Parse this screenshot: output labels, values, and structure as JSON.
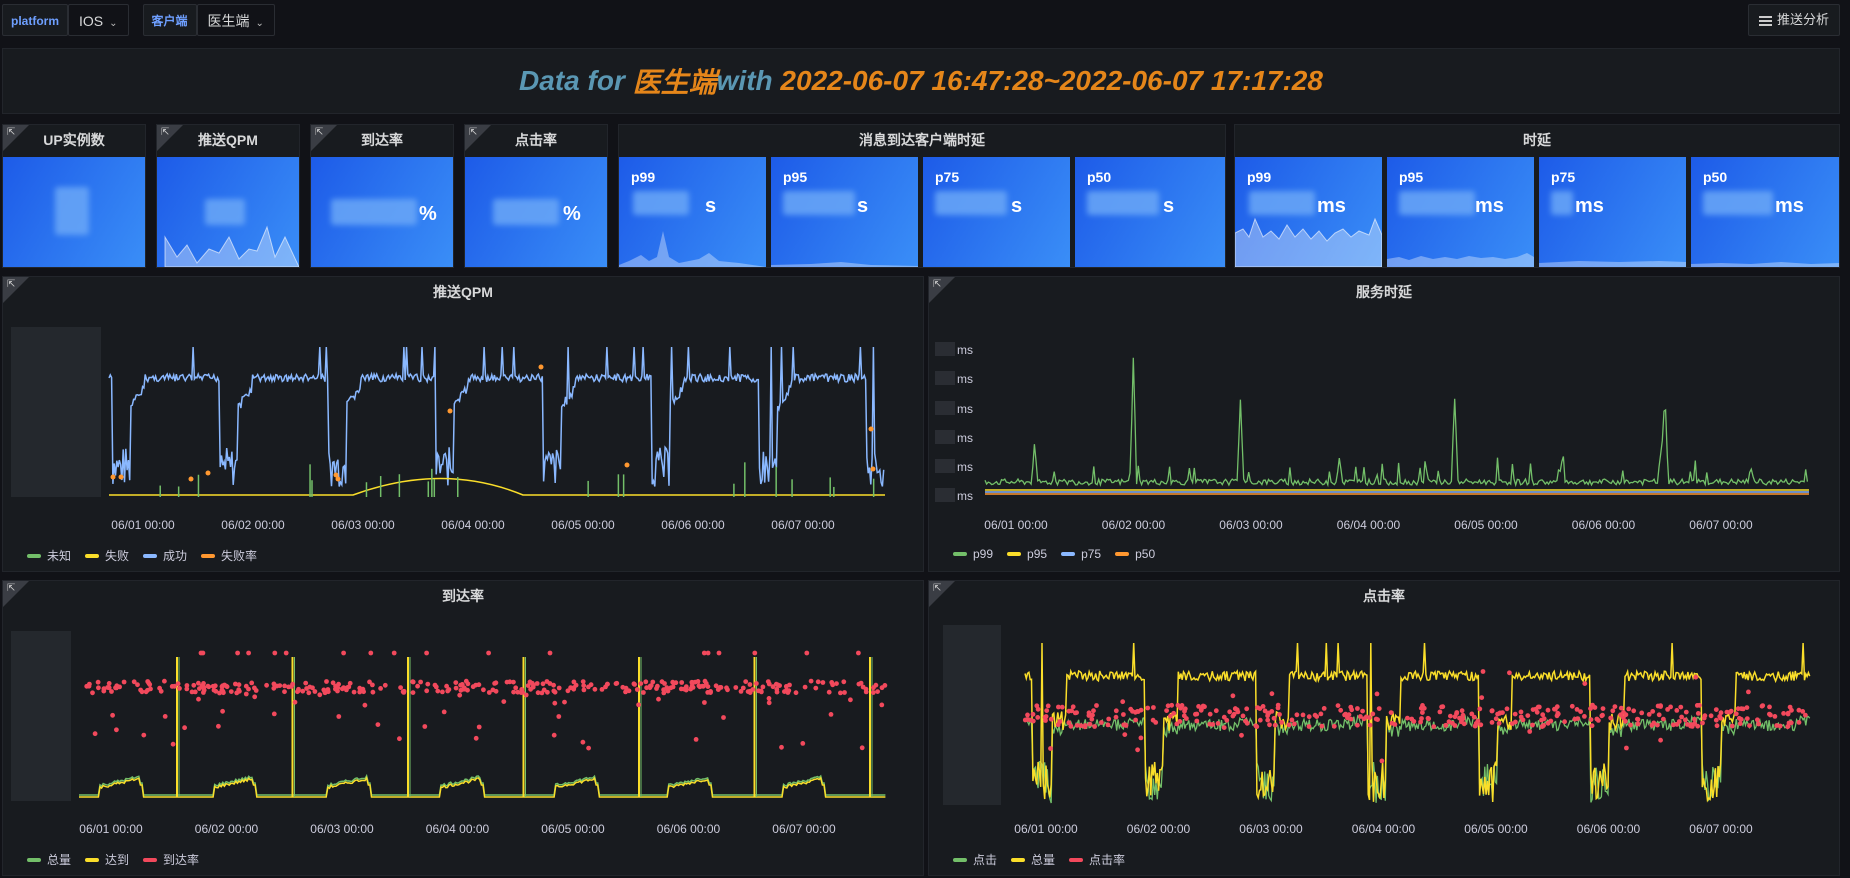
{
  "topbar": {
    "var1_label": "platform",
    "var1_value": "IOS",
    "var2_label": "客户端",
    "var2_value": "医生端",
    "push_button": "推送分析"
  },
  "banner": {
    "prefix": "Data for ",
    "client": "医生端",
    "middle": " with ",
    "range": "2022-06-07 16:47:28~2022-06-07 17:17:28"
  },
  "stats": {
    "up_title": "UP实例数",
    "qpm_title": "推送QPM",
    "arrival_title": "到达率",
    "arrival_unit": "%",
    "click_title": "点击率",
    "click_unit": "%",
    "msg_latency_title": "消息到达客户端时延",
    "latency_title": "时延",
    "msg_latency": [
      {
        "label": "p99",
        "unit": "s"
      },
      {
        "label": "p95",
        "unit": "s"
      },
      {
        "label": "p75",
        "unit": "s"
      },
      {
        "label": "p50",
        "unit": "s"
      }
    ],
    "latency": [
      {
        "label": "p99",
        "unit": "ms"
      },
      {
        "label": "p95",
        "unit": "ms"
      },
      {
        "label": "p75",
        "unit": "ms"
      },
      {
        "label": "p50",
        "unit": "ms"
      }
    ]
  },
  "colors": {
    "green": "#73bf69",
    "yellow": "#fade2a",
    "blue": "#8ab8ff",
    "orange": "#ff9830",
    "red": "#f2495c",
    "stat_bg": "#1f60e4"
  },
  "chart_data": [
    {
      "type": "line",
      "title": "推送QPM",
      "x": [
        "06/01 00:00",
        "06/02 00:00",
        "06/03 00:00",
        "06/04 00:00",
        "06/05 00:00",
        "06/06 00:00",
        "06/07 00:00"
      ],
      "y_tick_units": [
        ""
      ],
      "series": [
        {
          "name": "未知",
          "color": "#73bf69"
        },
        {
          "name": "失败",
          "color": "#fade2a"
        },
        {
          "name": "成功",
          "color": "#8ab8ff"
        },
        {
          "name": "失败率",
          "color": "#ff9830"
        }
      ]
    },
    {
      "type": "line",
      "title": "服务时延",
      "x": [
        "06/01 00:00",
        "06/02 00:00",
        "06/03 00:00",
        "06/04 00:00",
        "06/05 00:00",
        "06/06 00:00",
        "06/07 00:00"
      ],
      "y_unit": "ms",
      "series": [
        {
          "name": "p99",
          "color": "#73bf69"
        },
        {
          "name": "p95",
          "color": "#fade2a"
        },
        {
          "name": "p75",
          "color": "#8ab8ff"
        },
        {
          "name": "p50",
          "color": "#ff9830"
        }
      ]
    },
    {
      "type": "line",
      "title": "到达率",
      "x": [
        "06/01 00:00",
        "06/02 00:00",
        "06/03 00:00",
        "06/04 00:00",
        "06/05 00:00",
        "06/06 00:00",
        "06/07 00:00"
      ],
      "series": [
        {
          "name": "总量",
          "color": "#73bf69"
        },
        {
          "name": "达到",
          "color": "#fade2a"
        },
        {
          "name": "到达率",
          "color": "#f2495c"
        }
      ]
    },
    {
      "type": "line",
      "title": "点击率",
      "x": [
        "06/01 00:00",
        "06/02 00:00",
        "06/03 00:00",
        "06/04 00:00",
        "06/05 00:00",
        "06/06 00:00",
        "06/07 00:00"
      ],
      "series": [
        {
          "name": "点击",
          "color": "#73bf69"
        },
        {
          "name": "总量",
          "color": "#fade2a"
        },
        {
          "name": "点击率",
          "color": "#f2495c"
        }
      ]
    }
  ]
}
